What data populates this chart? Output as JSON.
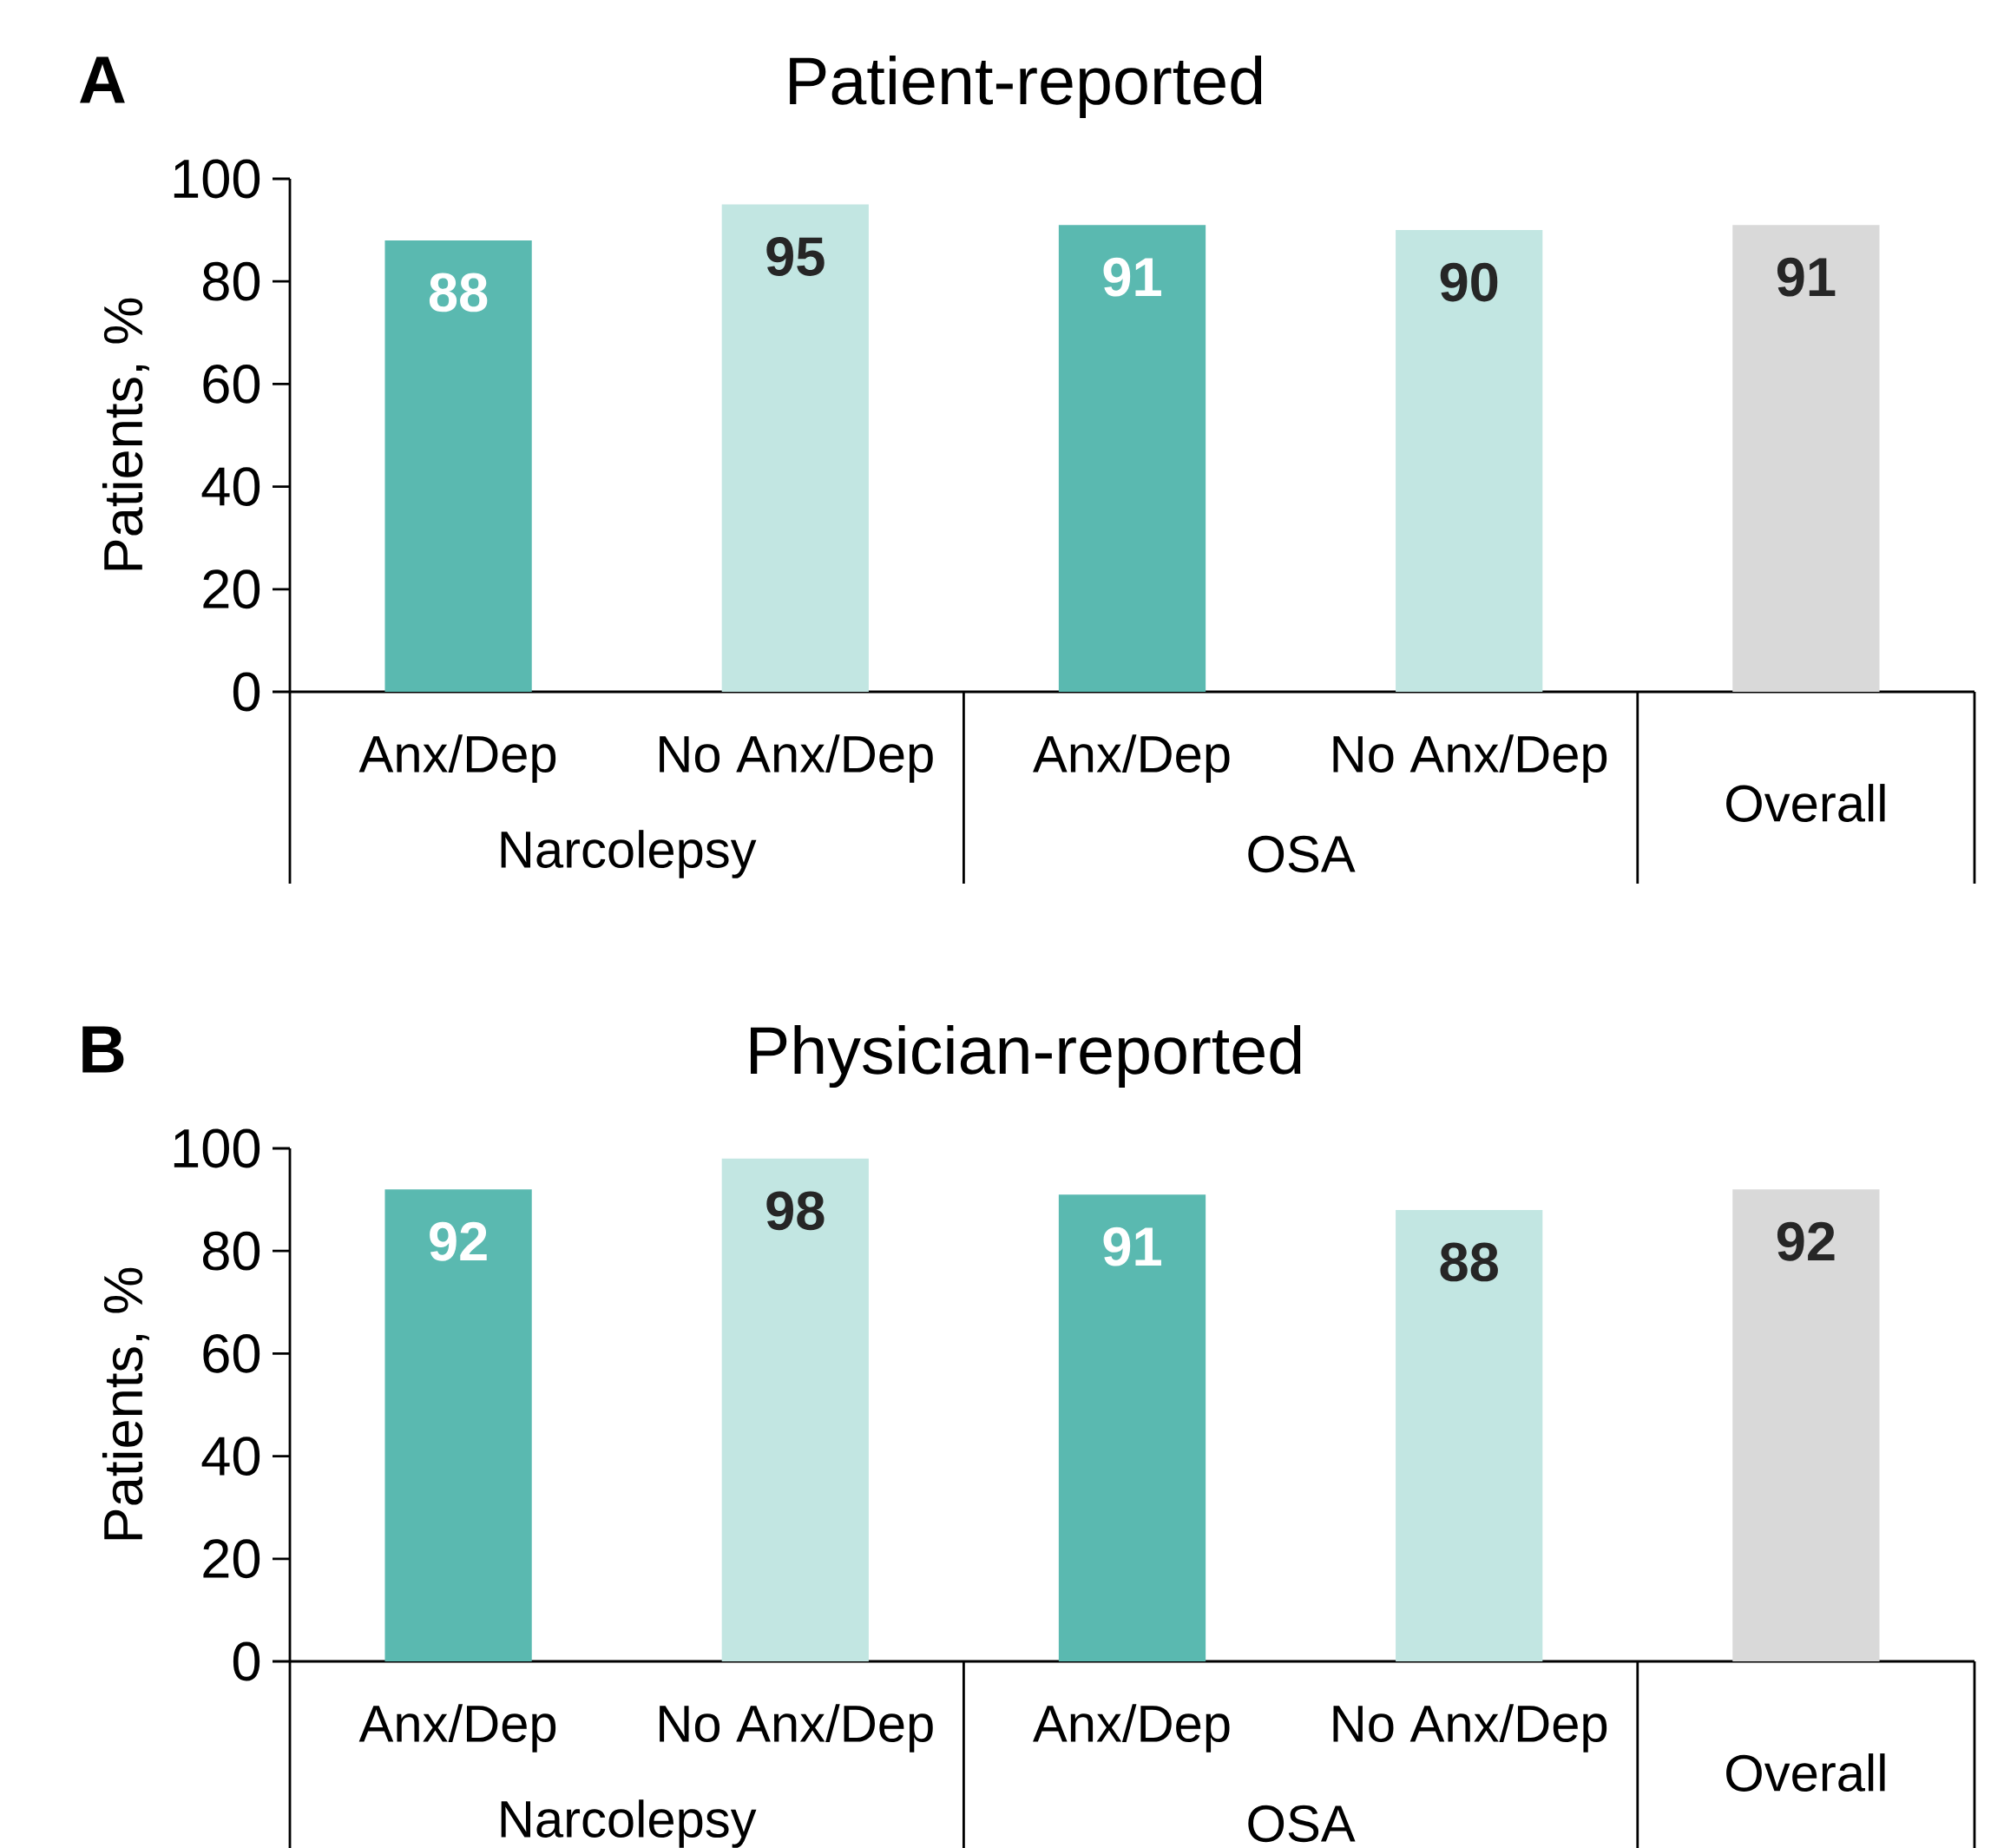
{
  "chart_data": [
    {
      "type": "bar",
      "title": "Patient-reported",
      "ylabel": "Patients, %",
      "categories": [
        "Anx/Dep",
        "No Anx/Dep",
        "Anx/Dep",
        "No Anx/Dep",
        "Overall"
      ],
      "values": [
        88,
        95,
        91,
        90,
        91
      ],
      "colors": [
        "#5ab9b0",
        "#c2e6e2",
        "#5ab9b0",
        "#c2e6e2",
        "#d9d9d9"
      ],
      "ylim": [
        0,
        100
      ],
      "yticks": [
        0,
        20,
        40,
        60,
        80,
        100
      ],
      "data_labels": true,
      "annotations": [
        "A",
        "Narcolepsy",
        "OSA"
      ]
    },
    {
      "type": "bar",
      "title": "Physician-reported",
      "ylabel": "Patients, %",
      "categories": [
        "Anx/Dep",
        "No Anx/Dep",
        "Anx/Dep",
        "No Anx/Dep",
        "Overall"
      ],
      "values": [
        92,
        98,
        91,
        88,
        92
      ],
      "colors": [
        "#5ab9b0",
        "#c2e6e2",
        "#5ab9b0",
        "#c2e6e2",
        "#d9d9d9"
      ],
      "ylim": [
        0,
        100
      ],
      "yticks": [
        0,
        20,
        40,
        60,
        80,
        100
      ],
      "data_labels": true,
      "annotations": [
        "B",
        "Narcolepsy",
        "OSA"
      ]
    }
  ]
}
